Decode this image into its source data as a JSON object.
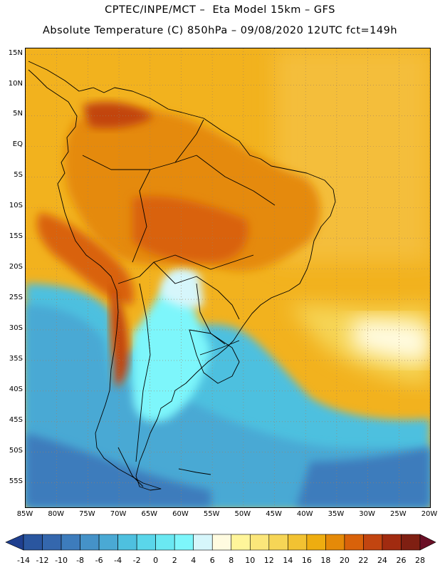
{
  "title_line1": "CPTEC/INPE/MCT –  Eta Model 15km – GFS",
  "title_line2": "Absolute Temperature (C) 850hPa – 09/08/2020 12UTC fct=149h",
  "map": {
    "lon_range": [
      -85,
      -20
    ],
    "lat_range": [
      -59,
      16
    ],
    "grid": "dotted",
    "lat_ticks": [
      "15N",
      "10N",
      "5N",
      "EQ",
      "5S",
      "10S",
      "15S",
      "20S",
      "25S",
      "30S",
      "35S",
      "40S",
      "45S",
      "50S",
      "55S"
    ],
    "lon_ticks": [
      "85W",
      "80W",
      "75W",
      "70W",
      "65W",
      "60W",
      "55W",
      "50W",
      "45W",
      "40W",
      "35W",
      "30W",
      "25W",
      "20W"
    ]
  },
  "colorbar": {
    "labels": [
      "-14",
      "-12",
      "-10",
      "-8",
      "-6",
      "-4",
      "-2",
      "0",
      "2",
      "4",
      "6",
      "8",
      "10",
      "12",
      "14",
      "16",
      "18",
      "20",
      "22",
      "24",
      "26",
      "28"
    ],
    "colors": [
      "#1f3f8f",
      "#2a569f",
      "#3467ad",
      "#3d7cbc",
      "#4592c8",
      "#4aa9d4",
      "#4ec0df",
      "#5ad6ea",
      "#6ae8f2",
      "#7df6fb",
      "#d6f6fb",
      "#fffbe0",
      "#fff59a",
      "#fbe67a",
      "#f6d556",
      "#f2c232",
      "#eead10",
      "#e58a08",
      "#d9620a",
      "#c24510",
      "#a12b10",
      "#7f1f12",
      "#6a0f26"
    ]
  }
}
